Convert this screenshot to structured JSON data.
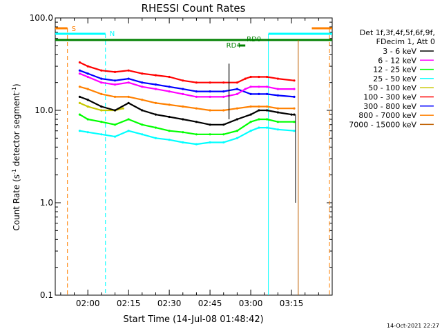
{
  "chart_data": {
    "type": "line",
    "title": "RHESSI Count Rates",
    "xlabel": "Start Time (14-Jul-08 01:48:42)",
    "ylabel_main": "Count Rate (s",
    "ylabel_sup1": "-1",
    "ylabel_mid": " detector segment",
    "ylabel_sup2": "-1",
    "ylabel_end": ")",
    "yscale": "log",
    "ylim": [
      0.1,
      100.0
    ],
    "y_ticks": [
      {
        "value": 0.1,
        "label": "0.1"
      },
      {
        "value": 1.0,
        "label": "1.0"
      },
      {
        "value": 10.0,
        "label": "10.0"
      },
      {
        "value": 100.0,
        "label": "100.0"
      }
    ],
    "xlim_minutes": [
      -12,
      90
    ],
    "x_ticks": [
      {
        "value": 0,
        "label": "02:00"
      },
      {
        "value": 15,
        "label": "02:15"
      },
      {
        "value": 30,
        "label": "02:30"
      },
      {
        "value": 45,
        "label": "02:45"
      },
      {
        "value": 60,
        "label": "03:00"
      },
      {
        "value": 75,
        "label": "03:15"
      }
    ],
    "legend_header": [
      "Det 1f,3f,4f,5f,6f,9f,",
      "FDecim 1, Att 0"
    ],
    "legend_placement": "right",
    "series": [
      {
        "name": "3 - 6 keV",
        "color": "#000000",
        "points": [
          [
            -3,
            14
          ],
          [
            0,
            13
          ],
          [
            5,
            11
          ],
          [
            10,
            10
          ],
          [
            15,
            12
          ],
          [
            20,
            10
          ],
          [
            25,
            9
          ],
          [
            30,
            8.5
          ],
          [
            35,
            8
          ],
          [
            40,
            7.5
          ],
          [
            45,
            7
          ],
          [
            50,
            7
          ],
          [
            55,
            8
          ],
          [
            60,
            9
          ],
          [
            63,
            10
          ],
          [
            66,
            10
          ],
          [
            70,
            9.5
          ],
          [
            75,
            9
          ],
          [
            76,
            9
          ]
        ]
      },
      {
        "name": "6 - 12 keV",
        "color": "#ff00ff",
        "points": [
          [
            -3,
            25
          ],
          [
            0,
            23
          ],
          [
            5,
            20
          ],
          [
            10,
            19
          ],
          [
            15,
            20
          ],
          [
            20,
            18
          ],
          [
            25,
            17
          ],
          [
            30,
            16
          ],
          [
            35,
            15
          ],
          [
            40,
            14
          ],
          [
            45,
            14
          ],
          [
            50,
            14
          ],
          [
            55,
            15
          ],
          [
            58,
            17
          ],
          [
            60,
            18
          ],
          [
            63,
            18
          ],
          [
            66,
            18
          ],
          [
            70,
            17
          ],
          [
            76,
            17
          ]
        ]
      },
      {
        "name": "12 - 25 keV",
        "color": "#00ff00",
        "points": [
          [
            -3,
            9
          ],
          [
            0,
            8
          ],
          [
            5,
            7.5
          ],
          [
            10,
            7
          ],
          [
            15,
            8
          ],
          [
            20,
            7
          ],
          [
            25,
            6.5
          ],
          [
            30,
            6
          ],
          [
            35,
            5.8
          ],
          [
            40,
            5.5
          ],
          [
            45,
            5.5
          ],
          [
            50,
            5.5
          ],
          [
            55,
            6
          ],
          [
            60,
            7.5
          ],
          [
            63,
            8
          ],
          [
            66,
            8
          ],
          [
            70,
            7.5
          ],
          [
            76,
            7.5
          ]
        ]
      },
      {
        "name": "25 - 50 keV",
        "color": "#00ffff",
        "points": [
          [
            -3,
            6
          ],
          [
            0,
            5.8
          ],
          [
            5,
            5.5
          ],
          [
            10,
            5.2
          ],
          [
            15,
            6
          ],
          [
            20,
            5.5
          ],
          [
            25,
            5
          ],
          [
            30,
            4.8
          ],
          [
            35,
            4.5
          ],
          [
            40,
            4.3
          ],
          [
            45,
            4.5
          ],
          [
            50,
            4.5
          ],
          [
            55,
            5
          ],
          [
            60,
            6
          ],
          [
            63,
            6.5
          ],
          [
            66,
            6.5
          ],
          [
            70,
            6.2
          ],
          [
            76,
            6
          ]
        ]
      },
      {
        "name": "50 - 100 keV",
        "color": "#c8c800",
        "points": [
          [
            -3,
            12
          ],
          [
            0,
            11
          ],
          [
            5,
            10
          ],
          [
            10,
            10
          ],
          [
            13,
            10.5
          ]
        ]
      },
      {
        "name": "100 - 300 keV",
        "color": "#ff0000",
        "points": [
          [
            -3,
            33
          ],
          [
            0,
            30
          ],
          [
            5,
            27
          ],
          [
            10,
            26
          ],
          [
            15,
            27
          ],
          [
            20,
            25
          ],
          [
            25,
            24
          ],
          [
            30,
            23
          ],
          [
            35,
            21
          ],
          [
            40,
            20
          ],
          [
            45,
            20
          ],
          [
            50,
            20
          ],
          [
            55,
            20
          ],
          [
            58,
            22
          ],
          [
            60,
            23
          ],
          [
            63,
            23
          ],
          [
            66,
            23
          ],
          [
            70,
            22
          ],
          [
            76,
            21
          ]
        ]
      },
      {
        "name": "300 - 800 keV",
        "color": "#0000ff",
        "points": [
          [
            -3,
            27
          ],
          [
            0,
            25
          ],
          [
            5,
            22
          ],
          [
            10,
            21
          ],
          [
            15,
            22
          ],
          [
            20,
            20
          ],
          [
            25,
            19
          ],
          [
            30,
            18
          ],
          [
            35,
            17
          ],
          [
            40,
            16
          ],
          [
            45,
            16
          ],
          [
            50,
            16
          ],
          [
            55,
            17
          ],
          [
            60,
            15
          ],
          [
            63,
            15
          ],
          [
            66,
            15
          ],
          [
            70,
            14.5
          ],
          [
            76,
            14
          ]
        ]
      },
      {
        "name": "800 - 7000 keV",
        "color": "#ff8000",
        "points": [
          [
            -3,
            18
          ],
          [
            0,
            17
          ],
          [
            5,
            15
          ],
          [
            10,
            14
          ],
          [
            15,
            14
          ],
          [
            20,
            13
          ],
          [
            25,
            12
          ],
          [
            30,
            11.5
          ],
          [
            35,
            11
          ],
          [
            40,
            10.5
          ],
          [
            45,
            10
          ],
          [
            50,
            10
          ],
          [
            55,
            10.5
          ],
          [
            60,
            11
          ],
          [
            63,
            11
          ],
          [
            66,
            11
          ],
          [
            70,
            10.5
          ],
          [
            76,
            10.5
          ]
        ]
      },
      {
        "name": "7000 - 15000 keV",
        "color": "#c06000",
        "points": []
      }
    ],
    "annotations": [
      {
        "label": "S",
        "color": "#ff8000"
      },
      {
        "label": "N",
        "color": "#00ffff"
      },
      {
        "label": "RD0",
        "color": "#008000"
      },
      {
        "label": "RD4",
        "color": "#008000"
      }
    ],
    "timestamp": "14-Oct-2021 22:27"
  }
}
